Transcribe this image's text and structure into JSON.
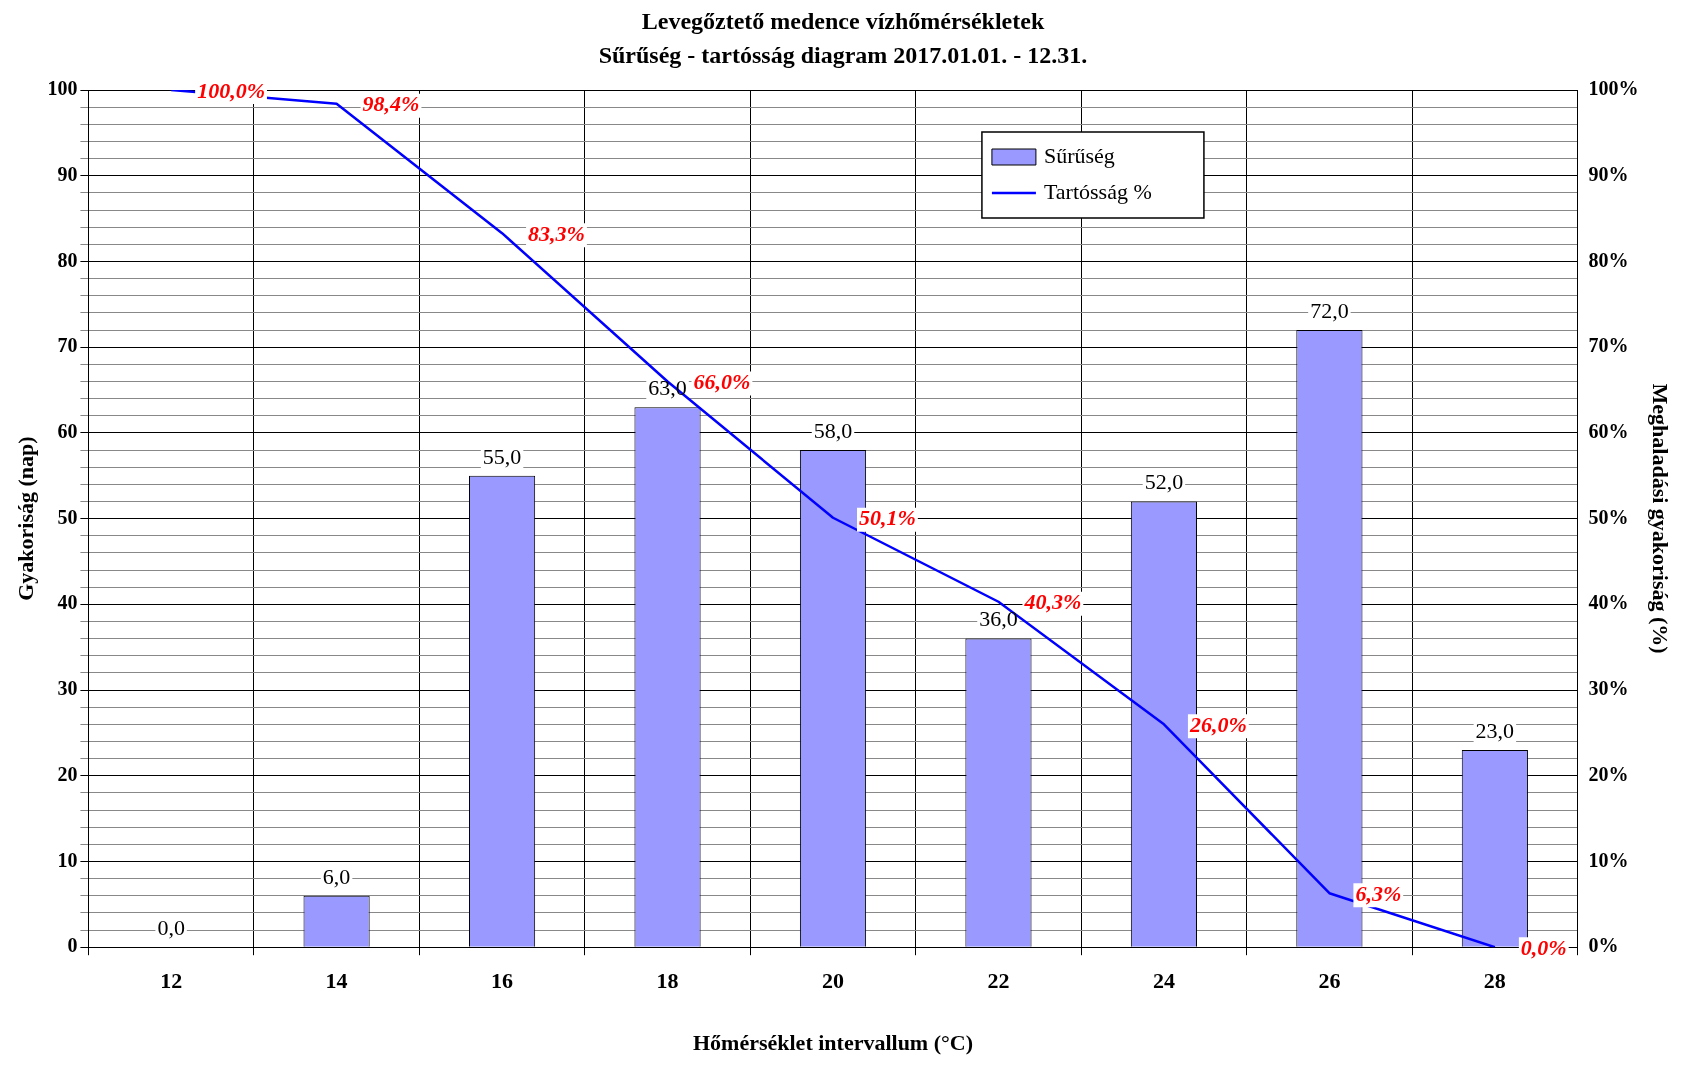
{
  "chart_data": {
    "type": "bar",
    "title": "Levegőztető medence vízhőmérsékletek",
    "subtitle": "Sűrűség - tartósság diagram 2017.01.01. - 12.31.",
    "xlabel": "Hőmérséklet intervallum (°C)",
    "ylabel": "Gyakoriság (nap)",
    "y2label": "Meghaladási gyakoriság (%)",
    "categories": [
      "12",
      "14",
      "16",
      "18",
      "20",
      "22",
      "24",
      "26",
      "28"
    ],
    "series": [
      {
        "name": "Sűrűség",
        "color": "#9999ff",
        "values": [
          0,
          6,
          55,
          63,
          58,
          36,
          52,
          72,
          23
        ],
        "value_labels": [
          "0,0",
          "6,0",
          "55,0",
          "63,0",
          "58,0",
          "36,0",
          "52,0",
          "72,0",
          "23,0"
        ]
      },
      {
        "name": "Tartósság %",
        "type": "line",
        "axis": "y2",
        "color": "#0000ff",
        "values": [
          100,
          98.4,
          83.3,
          66.0,
          50.1,
          40.3,
          26.0,
          6.3,
          0.0
        ],
        "value_labels": [
          "100,0%",
          "98,4%",
          "83,3%",
          "66,0%",
          "50,1%",
          "40,3%",
          "26,0%",
          "6,3%",
          "0,0%"
        ]
      }
    ],
    "ylim": [
      0,
      100
    ],
    "yticks": [
      0,
      {
        "value": 2,
        "label": null
      },
      {
        "value": 4,
        "label": null
      },
      {
        "value": 6,
        "label": null
      },
      {
        "value": 8,
        "label": null
      },
      10,
      {
        "value": 12,
        "label": null
      },
      {
        "value": 14,
        "label": null
      },
      {
        "value": 16,
        "label": null
      },
      {
        "value": 18,
        "label": null
      },
      20,
      {
        "value": 22,
        "label": null
      },
      {
        "value": 24,
        "label": null
      },
      {
        "value": 26,
        "label": null
      },
      {
        "value": 28,
        "label": null
      },
      30,
      {
        "value": 32,
        "label": null
      },
      {
        "value": 34,
        "label": null
      },
      {
        "value": 36,
        "label": null
      },
      {
        "value": 38,
        "label": null
      },
      40,
      {
        "value": 42,
        "label": null
      },
      {
        "value": 44,
        "label": null
      },
      {
        "value": 46,
        "label": null
      },
      {
        "value": 48,
        "label": null
      },
      50,
      {
        "value": 52,
        "label": null
      },
      {
        "value": 54,
        "label": null
      },
      {
        "value": 56,
        "label": null
      },
      {
        "value": 58,
        "label": null
      },
      60,
      {
        "value": 62,
        "label": null
      },
      {
        "value": 64,
        "label": null
      },
      {
        "value": 66,
        "label": null
      },
      {
        "value": 68,
        "label": null
      },
      70,
      {
        "value": 72,
        "label": null
      },
      {
        "value": 74,
        "label": null
      },
      {
        "value": 76,
        "label": null
      },
      {
        "value": 78,
        "label": null
      },
      80,
      {
        "value": 82,
        "label": null
      },
      {
        "value": 84,
        "label": null
      },
      {
        "value": 86,
        "label": null
      },
      {
        "value": 88,
        "label": null
      },
      90,
      {
        "value": 92,
        "label": null
      },
      {
        "value": 94,
        "label": null
      },
      {
        "value": 96,
        "label": null
      },
      {
        "value": 98,
        "label": null
      },
      100
    ],
    "y2lim": [
      0,
      100
    ],
    "y2ticks": [
      {
        "value": 0,
        "label": "0%"
      },
      {
        "value": 10,
        "label": "10%"
      },
      {
        "value": 20,
        "label": "20%"
      },
      {
        "value": 30,
        "label": "30%"
      },
      {
        "value": 40,
        "label": "40%"
      },
      {
        "value": 50,
        "label": "50%"
      },
      {
        "value": 60,
        "label": "60%"
      },
      {
        "value": 70,
        "label": "70%"
      },
      {
        "value": 80,
        "label": "80%"
      },
      {
        "value": 90,
        "label": "90%"
      },
      {
        "value": 100,
        "label": "100%"
      }
    ],
    "grid": true,
    "legend": "top right",
    "marker": "none",
    "line_style": "solid"
  }
}
